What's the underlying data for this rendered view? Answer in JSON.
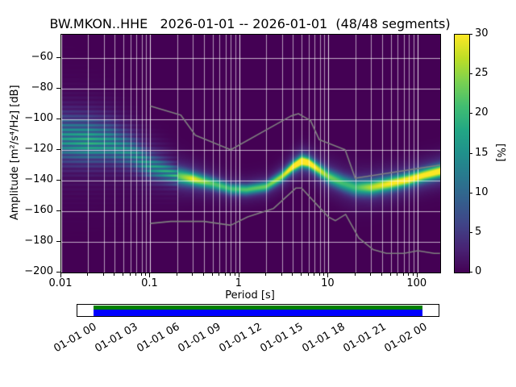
{
  "title": "BW.MKON..HHE   2026-01-01 -- 2026-01-01  (48/48 segments)",
  "axes": {
    "xlabel": "Period [s]",
    "ylabel": "Amplitude [m²/s⁴/Hz] [dB]",
    "x_tick_values": [
      0.01,
      0.1,
      1,
      10,
      100
    ],
    "x_tick_labels": [
      "0.01",
      "0.1",
      "1",
      "10",
      "100"
    ],
    "y_tick_values": [
      -60,
      -80,
      -100,
      -120,
      -140,
      -160,
      -180,
      -200
    ],
    "y_tick_labels": [
      "−60",
      "−80",
      "−100",
      "−120",
      "−140",
      "−160",
      "−180",
      "−200"
    ]
  },
  "colorbar": {
    "label": "[%]",
    "min": 0,
    "max": 30,
    "tick_values": [
      0,
      5,
      10,
      15,
      20,
      25,
      30
    ],
    "tick_labels": [
      "0",
      "5",
      "10",
      "15",
      "20",
      "25",
      "30"
    ]
  },
  "chart_data": {
    "type": "heatmap",
    "title": "BW.MKON..HHE   2026-01-01 -- 2026-01-01  (48/48 segments)",
    "xlabel": "Period [s]",
    "ylabel": "Amplitude [m²/s⁴/Hz] [dB]",
    "xscale": "log",
    "xlim": [
      0.01,
      180
    ],
    "ylim": [
      -200,
      -45
    ],
    "grid": true,
    "legend": "none",
    "background_color": "#440154",
    "grid_color": "rgba(255,255,255,0.85)",
    "noise_model_color": "#7f7f7f",
    "cmap_stops": [
      [
        0.0,
        "#440154"
      ],
      [
        0.1,
        "#482374"
      ],
      [
        0.2,
        "#404387"
      ],
      [
        0.3,
        "#345e8d"
      ],
      [
        0.4,
        "#29788e"
      ],
      [
        0.5,
        "#20908c"
      ],
      [
        0.6,
        "#22a784"
      ],
      [
        0.7,
        "#42be71"
      ],
      [
        0.8,
        "#79d151"
      ],
      [
        0.9,
        "#bdde26"
      ],
      [
        1.0,
        "#fde725"
      ]
    ],
    "psd_mode": {
      "periods": [
        0.01,
        0.02,
        0.035,
        0.06,
        0.1,
        0.2,
        0.3,
        0.5,
        0.8,
        1.2,
        2,
        3,
        4,
        5,
        6,
        8,
        10,
        15,
        20,
        30,
        50,
        80,
        120,
        180
      ],
      "db": [
        -115,
        -116,
        -117,
        -122,
        -131,
        -137,
        -139,
        -142,
        -145.5,
        -146,
        -144,
        -137.5,
        -131,
        -127.5,
        -128.5,
        -133.5,
        -137.5,
        -142,
        -144.5,
        -144.5,
        -142,
        -139.5,
        -136.5,
        -134
      ]
    },
    "psd_sigma_db": {
      "periods": [
        0.01,
        0.02,
        0.035,
        0.06,
        0.1,
        0.2,
        0.3,
        0.5,
        0.8,
        1.2,
        2,
        3,
        4,
        5,
        6,
        8,
        10,
        15,
        20,
        30,
        50,
        80,
        120,
        180
      ],
      "sigma": [
        9,
        8,
        7.5,
        6.5,
        5,
        3.5,
        2.8,
        2.6,
        2.3,
        2.2,
        2.2,
        2.3,
        2.4,
        2.5,
        2.5,
        2.7,
        3,
        3.3,
        3.4,
        3.2,
        3,
        2.8,
        2.8,
        2.8
      ]
    },
    "psd_peak_percent": {
      "periods": [
        0.01,
        0.02,
        0.035,
        0.06,
        0.1,
        0.2,
        0.3,
        0.5,
        0.8,
        1.2,
        2,
        3,
        4,
        5,
        6,
        8,
        10,
        15,
        20,
        30,
        50,
        80,
        120,
        180
      ],
      "percent": [
        11,
        14,
        13,
        12,
        14,
        18,
        24,
        18,
        17,
        18,
        19,
        22,
        27,
        30,
        28,
        23,
        20,
        17,
        17,
        22,
        25,
        26,
        26,
        27
      ]
    },
    "noise_models": {
      "high": {
        "periods": [
          0.1,
          0.22,
          0.32,
          0.8,
          3.8,
          4.6,
          6.3,
          7.9,
          15.4,
          20,
          179
        ],
        "db": [
          -91.5,
          -97.4,
          -110.5,
          -120,
          -98,
          -96.5,
          -101,
          -113.5,
          -120,
          -138.5,
          -130
        ]
      },
      "low": {
        "periods": [
          0.1,
          0.17,
          0.4,
          0.8,
          1.24,
          2.4,
          4.3,
          5,
          6,
          10,
          12,
          15.6,
          21.9,
          31.6,
          45,
          70,
          101,
          154,
          179
        ],
        "db": [
          -168,
          -166.7,
          -166.7,
          -169.2,
          -163.7,
          -158.4,
          -145,
          -145,
          -150,
          -163.8,
          -166.2,
          -162.1,
          -177.5,
          -185,
          -187.5,
          -187.5,
          -185.8,
          -187.5,
          -187.5
        ]
      }
    }
  },
  "timeline": {
    "extent_color": "#008000",
    "coverage_color": "#0000ff",
    "tick_labels": [
      "01-01 00",
      "01-01 03",
      "01-01 06",
      "01-01 09",
      "01-01 12",
      "01-01 15",
      "01-01 18",
      "01-01 21",
      "01-02 00"
    ]
  }
}
